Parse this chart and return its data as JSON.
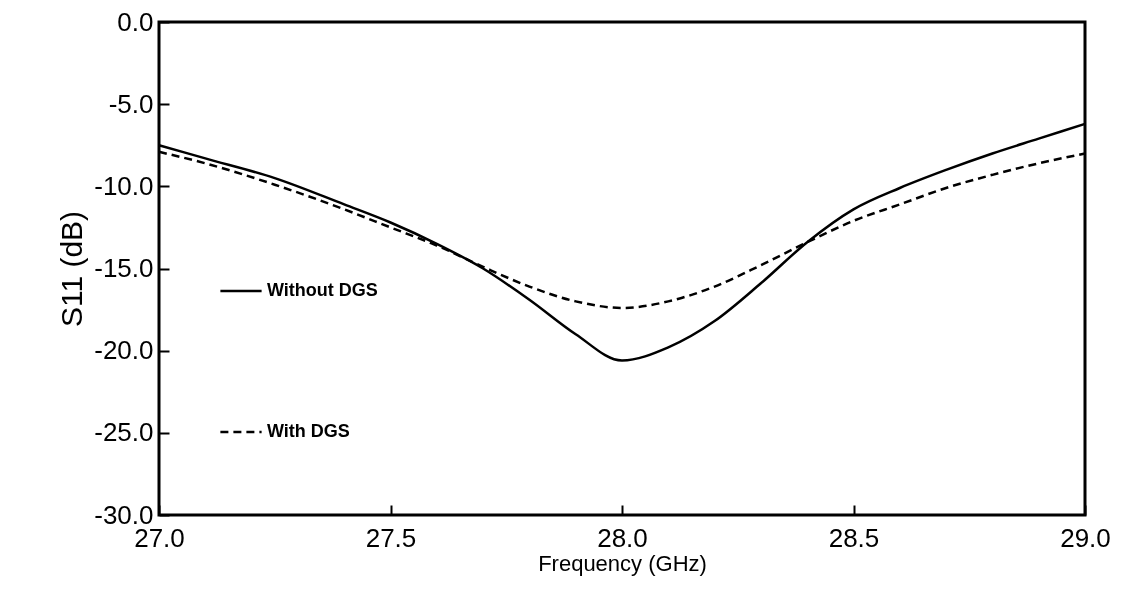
{
  "chart_data": {
    "type": "line",
    "xlabel": "Frequency (GHz)",
    "ylabel": "S11 (dB)",
    "xlim": [
      27.0,
      29.0
    ],
    "ylim": [
      -30.0,
      0.0
    ],
    "xticks": [
      {
        "value": 27,
        "label": "27.0"
      },
      {
        "value": 27.5,
        "label": "27.5"
      },
      {
        "value": 28,
        "label": "28.0"
      },
      {
        "value": 28.5,
        "label": "28.5"
      },
      {
        "value": 29,
        "label": "29.0"
      }
    ],
    "yticks": [
      {
        "value": 0,
        "label": "0.0"
      },
      {
        "value": -5,
        "label": "-5.0"
      },
      {
        "value": -10,
        "label": "-10.0"
      },
      {
        "value": -15,
        "label": "-15.0"
      },
      {
        "value": -20,
        "label": "-20.0"
      },
      {
        "value": -25,
        "label": "-25.0"
      },
      {
        "value": -30,
        "label": "-30.0"
      }
    ],
    "x": [
      27.0,
      27.1,
      27.25,
      27.4,
      27.5,
      27.6,
      27.7,
      27.8,
      27.9,
      28.0,
      28.1,
      28.2,
      28.3,
      28.4,
      28.5,
      28.6,
      28.7,
      28.8,
      28.9,
      29.0
    ],
    "grid": false,
    "legend": "left",
    "marker": "none",
    "series": [
      {
        "name": "Without DGS",
        "color": "#000000",
        "line_style": "solid",
        "values": [
          -7.5,
          -8.3,
          -9.5,
          -11.1,
          -12.2,
          -13.5,
          -15.0,
          -16.9,
          -19.0,
          -20.6,
          -19.8,
          -18.2,
          -15.9,
          -13.4,
          -11.4,
          -10.1,
          -9.0,
          -8.0,
          -7.1,
          -6.2
        ]
      },
      {
        "name": "With DGS",
        "color": "#000000",
        "line_style": "dashed",
        "values": [
          -7.9,
          -8.6,
          -9.9,
          -11.4,
          -12.5,
          -13.6,
          -14.9,
          -16.1,
          -17.0,
          -17.4,
          -17.0,
          -16.1,
          -14.8,
          -13.4,
          -12.1,
          -11.1,
          -10.1,
          -9.3,
          -8.6,
          -8.0
        ]
      }
    ]
  }
}
